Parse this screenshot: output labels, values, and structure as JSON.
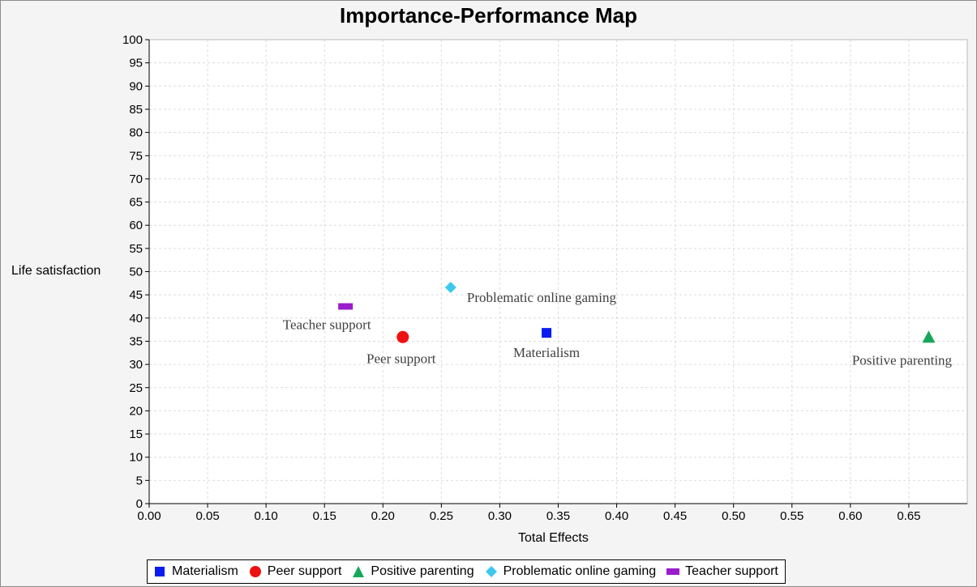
{
  "chart_data": {
    "type": "scatter",
    "title": "Importance-Performance Map",
    "xlabel": "Total Effects",
    "ylabel": "Life satisfaction",
    "xlim": [
      0.0,
      0.7
    ],
    "ylim": [
      0,
      100
    ],
    "x_ticks": [
      "0.00",
      "0.05",
      "0.10",
      "0.15",
      "0.20",
      "0.25",
      "0.30",
      "0.35",
      "0.40",
      "0.45",
      "0.50",
      "0.55",
      "0.60",
      "0.65"
    ],
    "y_ticks": [
      "0",
      "5",
      "10",
      "15",
      "20",
      "25",
      "30",
      "35",
      "40",
      "45",
      "50",
      "55",
      "60",
      "65",
      "70",
      "75",
      "80",
      "85",
      "90",
      "95",
      "100"
    ],
    "grid": true,
    "legend_position": "bottom",
    "points": [
      {
        "name": "Materialism",
        "x": 0.34,
        "y": 36.8,
        "marker": "square",
        "color": "#0a1cf0",
        "label": "Materialism"
      },
      {
        "name": "Peer support",
        "x": 0.217,
        "y": 35.9,
        "marker": "circle",
        "color": "#ee1111",
        "label": "Peer support"
      },
      {
        "name": "Positive parenting",
        "x": 0.667,
        "y": 35.9,
        "marker": "triangle",
        "color": "#16a85a",
        "label": "Positive parenting"
      },
      {
        "name": "Problematic online gaming",
        "x": 0.258,
        "y": 46.6,
        "marker": "diamond",
        "color": "#3ec8ee",
        "label": "Problematic online gaming"
      },
      {
        "name": "Teacher support",
        "x": 0.168,
        "y": 42.5,
        "marker": "bar",
        "color": "#9a1ccc",
        "label": "Teacher support"
      }
    ]
  }
}
